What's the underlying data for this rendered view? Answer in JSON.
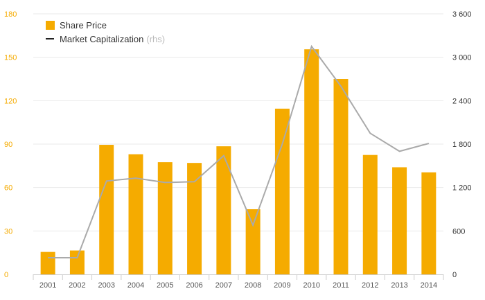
{
  "chart_data": {
    "type": "bar",
    "categories": [
      "2001",
      "2002",
      "2003",
      "2004",
      "2005",
      "2006",
      "2007",
      "2008",
      "2009",
      "2010",
      "2011",
      "2012",
      "2013",
      "2014"
    ],
    "series": [
      {
        "name": "Share Price",
        "type": "bar",
        "axis": "left",
        "color": "#f5ab00",
        "values": [
          15.5,
          16.5,
          89.5,
          83,
          77.5,
          77,
          88.5,
          45,
          114.5,
          155.5,
          135,
          82.5,
          74,
          70.5
        ]
      },
      {
        "name": "Market Capitalization",
        "type": "line",
        "axis": "right",
        "color": "#aaaaaa",
        "values": [
          230,
          230,
          1290,
          1330,
          1270,
          1280,
          1640,
          680,
          1800,
          3150,
          2600,
          1950,
          1700,
          1810
        ]
      }
    ],
    "y_left": {
      "ylim": [
        0,
        180
      ],
      "ticks": [
        "0",
        "30",
        "60",
        "90",
        "120",
        "150",
        "180"
      ],
      "color": "#f5ab00"
    },
    "y_right": {
      "ylim": [
        0,
        3600
      ],
      "ticks": [
        "0",
        "600",
        "1 200",
        "1 800",
        "2 400",
        "3 000",
        "3 600"
      ]
    },
    "grid": true,
    "legend": {
      "placement": "top-left",
      "items": [
        {
          "label": "Share Price",
          "marker": "square",
          "color": "#f5ab00"
        },
        {
          "label": "Market Capitalization",
          "suffix": "(rhs)",
          "marker": "line",
          "color": "#222222"
        }
      ]
    }
  }
}
